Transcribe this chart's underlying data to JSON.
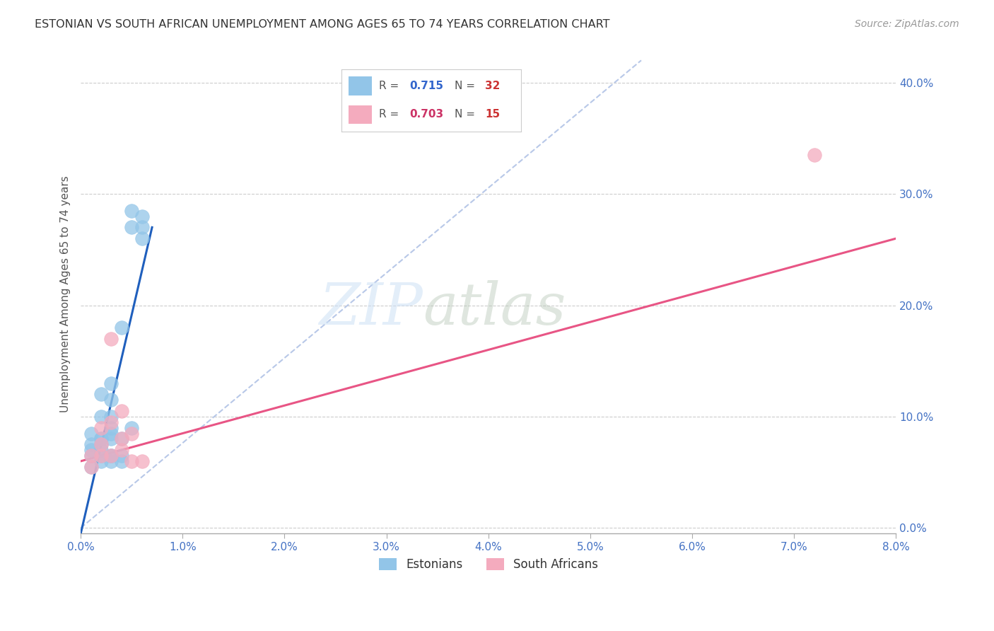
{
  "title": "ESTONIAN VS SOUTH AFRICAN UNEMPLOYMENT AMONG AGES 65 TO 74 YEARS CORRELATION CHART",
  "source": "Source: ZipAtlas.com",
  "ylabel": "Unemployment Among Ages 65 to 74 years",
  "xlim": [
    0.0,
    0.08
  ],
  "ylim": [
    -0.005,
    0.425
  ],
  "xticks": [
    0.0,
    0.01,
    0.02,
    0.03,
    0.04,
    0.05,
    0.06,
    0.07,
    0.08
  ],
  "yticks": [
    0.0,
    0.1,
    0.2,
    0.3,
    0.4
  ],
  "xtick_labels": [
    "0.0%",
    "1.0%",
    "2.0%",
    "3.0%",
    "4.0%",
    "5.0%",
    "6.0%",
    "7.0%",
    "8.0%"
  ],
  "ytick_labels": [
    "0.0%",
    "10.0%",
    "20.0%",
    "30.0%",
    "40.0%"
  ],
  "background_color": "#ffffff",
  "grid_color": "#cccccc",
  "axis_color": "#4472c4",
  "estonian_color": "#92C5E8",
  "sa_color": "#F4ABBE",
  "blue_line_color": "#1f5fbd",
  "pink_line_color": "#e85585",
  "diag_line_color": "#b8c8e8",
  "legend_R_estonian": "0.715",
  "legend_N_estonian": "32",
  "legend_R_sa": "0.703",
  "legend_N_sa": "15",
  "estonian_x": [
    0.001,
    0.001,
    0.001,
    0.001,
    0.001,
    0.002,
    0.002,
    0.002,
    0.002,
    0.002,
    0.002,
    0.002,
    0.002,
    0.003,
    0.003,
    0.003,
    0.003,
    0.003,
    0.003,
    0.003,
    0.003,
    0.003,
    0.004,
    0.004,
    0.004,
    0.004,
    0.005,
    0.005,
    0.005,
    0.006,
    0.006,
    0.006
  ],
  "estonian_y": [
    0.055,
    0.065,
    0.07,
    0.075,
    0.085,
    0.06,
    0.065,
    0.07,
    0.075,
    0.08,
    0.08,
    0.1,
    0.12,
    0.06,
    0.065,
    0.065,
    0.08,
    0.085,
    0.09,
    0.1,
    0.115,
    0.13,
    0.06,
    0.065,
    0.08,
    0.18,
    0.09,
    0.27,
    0.285,
    0.26,
    0.27,
    0.28
  ],
  "sa_x": [
    0.001,
    0.001,
    0.002,
    0.002,
    0.002,
    0.003,
    0.003,
    0.003,
    0.004,
    0.004,
    0.004,
    0.005,
    0.005,
    0.006,
    0.072
  ],
  "sa_y": [
    0.055,
    0.065,
    0.065,
    0.075,
    0.09,
    0.065,
    0.095,
    0.17,
    0.07,
    0.08,
    0.105,
    0.06,
    0.085,
    0.06,
    0.335
  ],
  "blue_line_x": [
    0.0,
    0.007
  ],
  "blue_line_y": [
    -0.005,
    0.27
  ],
  "pink_line_x": [
    0.0,
    0.08
  ],
  "pink_line_y": [
    0.06,
    0.26
  ],
  "diag_line_x": [
    0.0,
    0.055
  ],
  "diag_line_y": [
    0.0,
    0.42
  ]
}
